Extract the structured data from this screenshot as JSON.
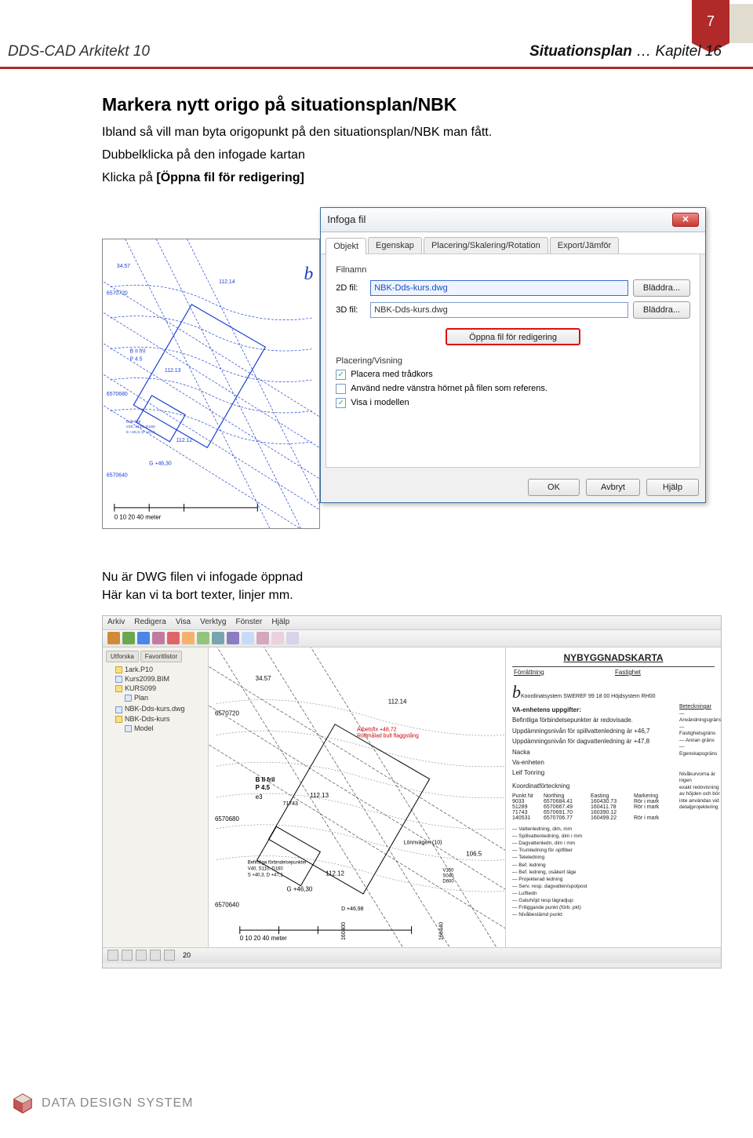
{
  "page": {
    "number": "7"
  },
  "header": {
    "left": "DDS-CAD Arkitekt 10",
    "right_bold": "Situationsplan",
    "right_light": " … Kapitel 16"
  },
  "section": {
    "heading": "Markera nytt origo på situationsplan/NBK",
    "p1": "Ibland så vill man byta origopunkt på den situationsplan/NBK man fått.",
    "p2": "Dubbelklicka på den infogade kartan",
    "p3_pre": "Klicka på ",
    "p3_bold": "[Öppna fil för redigering]"
  },
  "dialog": {
    "title": "Infoga fil",
    "tabs": [
      "Objekt",
      "Egenskap",
      "Placering/Skalering/Rotation",
      "Export/Jämför"
    ],
    "group_filnamn": "Filnamn",
    "label_2d": "2D fil:",
    "label_3d": "3D fil:",
    "value_2d": "NBK-Dds-kurs.dwg",
    "value_3d": "NBK-Dds-kurs.dwg",
    "browse": "Bläddra...",
    "open_edit": "Öppna fil för redigering",
    "group_placering": "Placering/Visning",
    "chk1": "Placera med trådkors",
    "chk2": "Använd nedre vänstra hörnet på filen som referens.",
    "chk3": "Visa i modellen",
    "chk1_checked": true,
    "chk2_checked": false,
    "chk3_checked": true,
    "ok": "OK",
    "cancel": "Avbryt",
    "help": "Hjälp"
  },
  "after": {
    "l1": "Nu är DWG filen vi infogade öppnad",
    "l2": "Här kan vi ta bort texter, linjer mm."
  },
  "cad": {
    "menu": [
      "Arkiv",
      "Redigera",
      "Visa",
      "Verktyg",
      "Fönster",
      "Hjälp"
    ],
    "toolbar_colors": [
      "#d08a3a",
      "#6aa84f",
      "#4a86e8",
      "#c27ba0",
      "#e06666",
      "#f6b26b",
      "#93c47d",
      "#76a5af",
      "#8e7cc3",
      "#c9daf8",
      "#d5a6bd",
      "#ead1dc",
      "#d9d2e9"
    ],
    "side_tabs": [
      "Utforska",
      "Favoritlistor"
    ],
    "tree": [
      {
        "label": "1ark.P10",
        "type": "folder"
      },
      {
        "label": "Kurs2099.BIM",
        "type": "file"
      },
      {
        "label": "KURS099",
        "type": "folder",
        "children": [
          {
            "label": "Plan",
            "type": "file"
          }
        ]
      },
      {
        "label": "NBK-Dds-kurs.dwg",
        "type": "file"
      },
      {
        "label": "NBK-Dds-kurs",
        "type": "folder",
        "children": [
          {
            "label": "Model",
            "type": "file"
          }
        ]
      }
    ],
    "right_panel": {
      "title": "NYBYGGNADSKARTA",
      "sub_left": "Förrättning",
      "sub_right": "Fastighet",
      "coord_sys": "Koordinatsystem SWEREF 99 18 00  Höjdsystem RH00",
      "va_header": "VA-enhetens uppgifter:",
      "va_lines": [
        "Befintliga förbindelsepunkter är redovisade.",
        "Uppdämningsnivån för spillvattenledning är +46,7",
        "Uppdämningsnivån för dagvattenledning är +47,8"
      ],
      "unit": [
        "Nacka",
        "Va-enheten",
        "Leif Tonring"
      ],
      "koordf": "Koordinatförteckning",
      "table_headers": [
        "Punkt Nr",
        "Northing",
        "Easting",
        "Markering"
      ],
      "table_rows": [
        [
          "9033",
          "6570684.41",
          "160430.73",
          "Rör i mark"
        ],
        [
          "51289",
          "6570667.49",
          "160411.78",
          "Rör i mark"
        ],
        [
          "71743",
          "6570691.70",
          "160390.12",
          ""
        ],
        [
          "140531",
          "6570706.77",
          "160499.22",
          "Rör i mark"
        ]
      ],
      "beteckningar": "Beteckningar",
      "bet_items": [
        "Användningsgräns",
        "Fastighetsgräns",
        "Annan gräns",
        "Egenskapsgräns"
      ],
      "niva_note": [
        "Nivåkurvorna är ingen",
        "exakt redovisning",
        "av höjden och bör",
        "inte användas vid",
        "detaljprojektering"
      ],
      "legend_items": [
        "Vattenledning, dim, mm",
        "Spillvattenledning, dim i mm",
        "Dagvattenledn, dim i mm",
        "Trumledning för optfiber",
        "Teleledning",
        "Bef. ledning",
        "Bef. ledning, osäkert läge",
        "Projekterad ledning",
        "Serv. resp. dagvatten/spolpost",
        "Luftledn",
        "Gatuhöjd resp lägradjup",
        "Friliggande punkt (förb. pkt)",
        "Nivåbestämd punkt"
      ]
    },
    "map_labels": {
      "elev1": "34.57",
      "elev2": "112.14",
      "northing1": "6570720",
      "northing2": "6570680",
      "northing3": "6570640",
      "arbetsfix": "Arbetsfix +48,72",
      "rodmalad": "Rödmålad bult flaggstång",
      "prop": "B II fril",
      "prop2": "P 4.5",
      "e3": "e3",
      "elev3": "112.13",
      "elev4": "112.12",
      "befintl": "Befintliga förbindelsepunkter",
      "befintl2": "V40, S110, D160",
      "befintl3": "S +40,3, D +47,1",
      "lonn": "Lönnvägen (10)",
      "elev5": "106.5",
      "v150": "V150\nS040\nD600",
      "gplus": "G +46,30",
      "dplus": "D +46,98",
      "scale": "0    10    20           40 meter",
      "e160400": "160400",
      "e160440": "160440",
      "pt71743": "71743"
    },
    "status_zoom": "20"
  },
  "footer": {
    "company": "DATA DESIGN SYSTEM"
  },
  "colors": {
    "accent": "#b02a2a",
    "map_blue": "#1a3fcf",
    "map_dashblue": "#3a5fdf",
    "red_box": "#d11"
  }
}
